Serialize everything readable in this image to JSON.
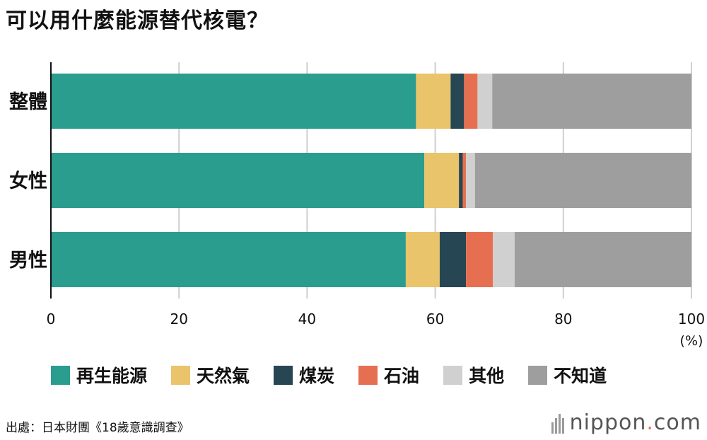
{
  "title": "可以用什麼能源替代核電？",
  "source": "出處：日本財團《18歲意識調查》",
  "brand": {
    "name": "nippon",
    "dot": ".",
    "tld": "com"
  },
  "chart_data": {
    "type": "bar",
    "orientation": "horizontal",
    "stacked": true,
    "title": "可以用什麼能源替代核電？",
    "categories": [
      "整體",
      "女性",
      "男性"
    ],
    "unit": "(%)",
    "xlim": [
      0,
      100
    ],
    "xticks": [
      0,
      20,
      40,
      60,
      80,
      100
    ],
    "grid": true,
    "legend_position": "bottom",
    "series": [
      {
        "name": "再生能源",
        "color": "#2a9d8f",
        "values": [
          57.0,
          58.3,
          55.4
        ]
      },
      {
        "name": "天然氣",
        "color": "#e9c46a",
        "values": [
          5.4,
          5.4,
          5.3
        ]
      },
      {
        "name": "煤炭",
        "color": "#264653",
        "values": [
          2.1,
          0.6,
          4.1
        ]
      },
      {
        "name": "石油",
        "color": "#e76f51",
        "values": [
          2.1,
          0.5,
          4.2
        ]
      },
      {
        "name": "其他",
        "color": "#d0d0d0",
        "values": [
          2.3,
          1.4,
          3.4
        ]
      },
      {
        "name": "不知道",
        "color": "#9e9e9e",
        "values": [
          31.1,
          33.8,
          27.6
        ]
      }
    ]
  }
}
